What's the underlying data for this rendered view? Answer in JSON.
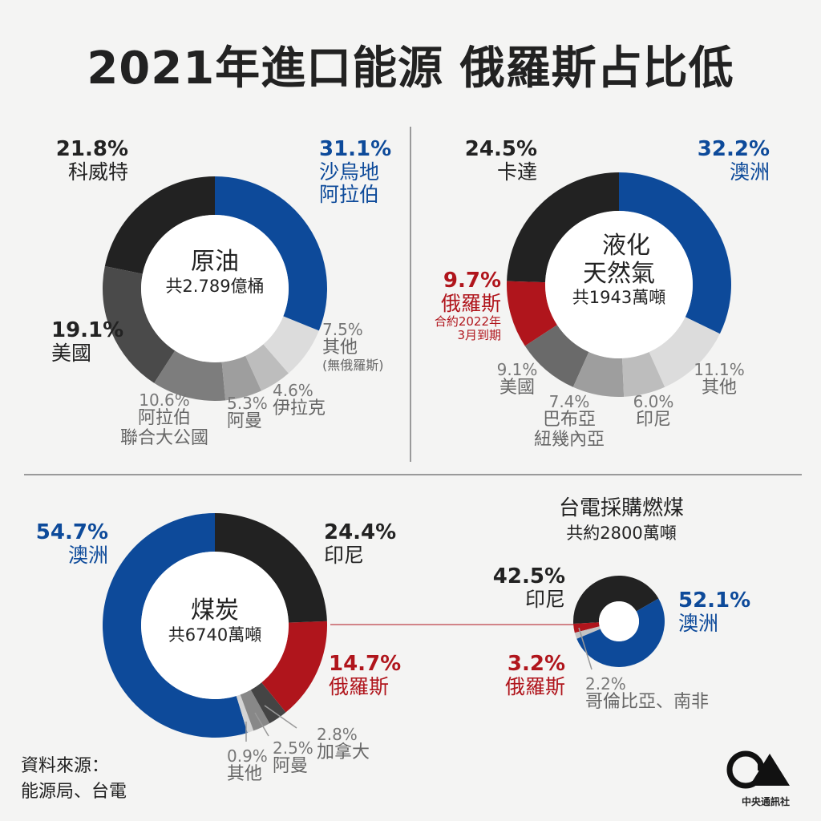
{
  "title": "2021年進口能源 俄羅斯占比低",
  "source": {
    "line1": "資料來源：",
    "line2": "能源局、台電"
  },
  "logo": {
    "text": "中央通訊社",
    "mark": "CNA"
  },
  "colors": {
    "blue": "#0d4a9a",
    "red": "#b0151c",
    "black": "#222222"
  },
  "chart_data": [
    {
      "type": "pie",
      "style": "donut",
      "center_title": "原油",
      "center_sub": "共2.789億桶",
      "slices": [
        {
          "label": "沙烏地阿拉伯",
          "label_lines": [
            "沙烏地",
            "阿拉伯"
          ],
          "value": 31.1,
          "text": "31.1%",
          "color": "#0d4a9a"
        },
        {
          "label": "其他",
          "label_lines": [
            "其他",
            "(無俄羅斯)"
          ],
          "value": 7.5,
          "text": "7.5%",
          "color": "#dcdcdc"
        },
        {
          "label": "伊拉克",
          "label_lines": [
            "伊拉克"
          ],
          "value": 4.6,
          "text": "4.6%",
          "color": "#bdbdbd"
        },
        {
          "label": "阿曼",
          "label_lines": [
            "阿曼"
          ],
          "value": 5.3,
          "text": "5.3%",
          "color": "#9e9e9e"
        },
        {
          "label": "阿拉伯聯合大公國",
          "label_lines": [
            "阿拉伯",
            "聯合大公國"
          ],
          "value": 10.6,
          "text": "10.6%",
          "color": "#7d7d7d"
        },
        {
          "label": "美國",
          "label_lines": [
            "美國"
          ],
          "value": 19.1,
          "text": "19.1%",
          "color": "#4a4a4a"
        },
        {
          "label": "科威特",
          "label_lines": [
            "科威特"
          ],
          "value": 21.8,
          "text": "21.8%",
          "color": "#222222"
        }
      ]
    },
    {
      "type": "pie",
      "style": "donut",
      "center_title": "液化天然氣",
      "center_title_lines": [
        "液化",
        "天然氣"
      ],
      "center_sub": "共1943萬噸",
      "slices": [
        {
          "label": "澳洲",
          "label_lines": [
            "澳洲"
          ],
          "value": 32.2,
          "text": "32.2%",
          "color": "#0d4a9a"
        },
        {
          "label": "其他",
          "label_lines": [
            "其他"
          ],
          "value": 11.1,
          "text": "11.1%",
          "color": "#dcdcdc"
        },
        {
          "label": "印尼",
          "label_lines": [
            "印尼"
          ],
          "value": 6.0,
          "text": "6.0%",
          "color": "#bdbdbd"
        },
        {
          "label": "巴布亞紐幾內亞",
          "label_lines": [
            "巴布亞",
            "紐幾內亞"
          ],
          "value": 7.4,
          "text": "7.4%",
          "color": "#9e9e9e"
        },
        {
          "label": "美國",
          "label_lines": [
            "美國"
          ],
          "value": 9.1,
          "text": "9.1%",
          "color": "#6a6a6a"
        },
        {
          "label": "俄羅斯",
          "label_lines": [
            "俄羅斯"
          ],
          "note": [
            "合約2022年",
            "3月到期"
          ],
          "value": 9.7,
          "text": "9.7%",
          "color": "#b0151c"
        },
        {
          "label": "卡達",
          "label_lines": [
            "卡達"
          ],
          "value": 24.5,
          "text": "24.5%",
          "color": "#222222"
        }
      ]
    },
    {
      "type": "pie",
      "style": "donut",
      "center_title": "煤炭",
      "center_sub": "共6740萬噸",
      "slices": [
        {
          "label": "印尼",
          "label_lines": [
            "印尼"
          ],
          "value": 24.4,
          "text": "24.4%",
          "color": "#222222"
        },
        {
          "label": "俄羅斯",
          "label_lines": [
            "俄羅斯"
          ],
          "value": 14.7,
          "text": "14.7%",
          "color": "#b0151c"
        },
        {
          "label": "加拿大",
          "label_lines": [
            "加拿大"
          ],
          "value": 2.8,
          "text": "2.8%",
          "color": "#444444"
        },
        {
          "label": "阿曼",
          "label_lines": [
            "阿曼"
          ],
          "value": 2.5,
          "text": "2.5%",
          "color": "#888888"
        },
        {
          "label": "其他",
          "label_lines": [
            "其他"
          ],
          "value": 0.9,
          "text": "0.9%",
          "color": "#d4d4d4"
        },
        {
          "label": "澳洲",
          "label_lines": [
            "澳洲"
          ],
          "value": 54.7,
          "text": "54.7%",
          "color": "#0d4a9a"
        }
      ]
    },
    {
      "type": "pie",
      "style": "donut",
      "title": "台電採購燃煤",
      "subtitle": "共約2800萬噸",
      "slices": [
        {
          "label": "澳洲",
          "label_lines": [
            "澳洲"
          ],
          "value": 52.1,
          "text": "52.1%",
          "color": "#0d4a9a"
        },
        {
          "label": "哥倫比亞、南非",
          "label_lines": [
            "哥倫比亞、南非"
          ],
          "value": 2.2,
          "text": "2.2%",
          "color": "#c4c4c4"
        },
        {
          "label": "俄羅斯",
          "label_lines": [
            "俄羅斯"
          ],
          "value": 3.2,
          "text": "3.2%",
          "color": "#b0151c"
        },
        {
          "label": "印尼",
          "label_lines": [
            "印尼"
          ],
          "value": 42.5,
          "text": "42.5%",
          "color": "#222222"
        }
      ]
    }
  ]
}
